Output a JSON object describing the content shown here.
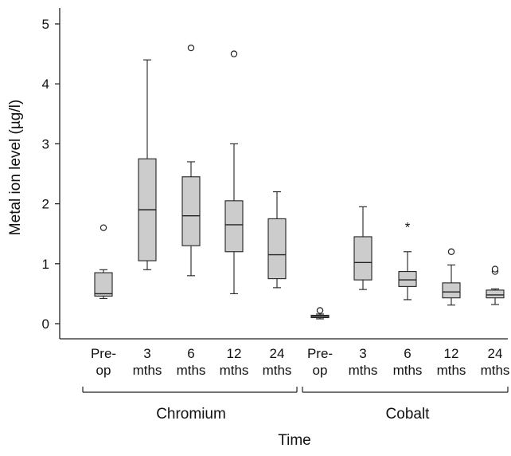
{
  "chart_data": {
    "type": "boxplot",
    "ylabel": "Metal ion level (µg/l)",
    "xlabel": "Time",
    "ylim": [
      -0.2,
      5.3
    ],
    "yticks": [
      0,
      1,
      2,
      3,
      4,
      5
    ],
    "grid": false,
    "legend": "none",
    "colors": {
      "box_fill": "#cccccc",
      "line": "#222222"
    },
    "groups": [
      {
        "name": "Chromium",
        "categories": [
          {
            "label": [
              "Pre-",
              "op"
            ],
            "whisker_low": 0.42,
            "q1": 0.46,
            "median": 0.5,
            "q3": 0.85,
            "whisker_high": 0.9,
            "outliers": [
              {
                "value": 1.6,
                "marker": "circle"
              }
            ]
          },
          {
            "label": [
              "3",
              "mths"
            ],
            "whisker_low": 0.9,
            "q1": 1.05,
            "median": 1.9,
            "q3": 2.75,
            "whisker_high": 4.4,
            "outliers": []
          },
          {
            "label": [
              "6",
              "mths"
            ],
            "whisker_low": 0.8,
            "q1": 1.3,
            "median": 1.8,
            "q3": 2.45,
            "whisker_high": 2.7,
            "outliers": [
              {
                "value": 4.6,
                "marker": "circle"
              }
            ]
          },
          {
            "label": [
              "12",
              "mths"
            ],
            "whisker_low": 0.5,
            "q1": 1.2,
            "median": 1.65,
            "q3": 2.05,
            "whisker_high": 3.0,
            "outliers": [
              {
                "value": 4.5,
                "marker": "circle"
              }
            ]
          },
          {
            "label": [
              "24",
              "mths"
            ],
            "whisker_low": 0.6,
            "q1": 0.75,
            "median": 1.15,
            "q3": 1.75,
            "whisker_high": 2.2,
            "outliers": []
          }
        ]
      },
      {
        "name": "Cobalt",
        "categories": [
          {
            "label": [
              "Pre-",
              "op"
            ],
            "whisker_low": 0.08,
            "q1": 0.1,
            "median": 0.12,
            "q3": 0.14,
            "whisker_high": 0.16,
            "outliers": [
              {
                "value": 0.22,
                "marker": "circle"
              }
            ]
          },
          {
            "label": [
              "3",
              "mths"
            ],
            "whisker_low": 0.57,
            "q1": 0.73,
            "median": 1.02,
            "q3": 1.45,
            "whisker_high": 1.95,
            "outliers": []
          },
          {
            "label": [
              "6",
              "mths"
            ],
            "whisker_low": 0.4,
            "q1": 0.62,
            "median": 0.73,
            "q3": 0.87,
            "whisker_high": 1.2,
            "outliers": [
              {
                "value": 1.6,
                "marker": "star"
              }
            ]
          },
          {
            "label": [
              "12",
              "mths"
            ],
            "whisker_low": 0.31,
            "q1": 0.43,
            "median": 0.53,
            "q3": 0.68,
            "whisker_high": 0.98,
            "outliers": [
              {
                "value": 1.2,
                "marker": "circle"
              }
            ]
          },
          {
            "label": [
              "24",
              "mths"
            ],
            "whisker_low": 0.32,
            "q1": 0.43,
            "median": 0.48,
            "q3": 0.56,
            "whisker_high": 0.58,
            "outliers": [
              {
                "value": 0.87,
                "marker": "circle"
              },
              {
                "value": 0.91,
                "marker": "circle"
              }
            ]
          }
        ]
      }
    ]
  }
}
